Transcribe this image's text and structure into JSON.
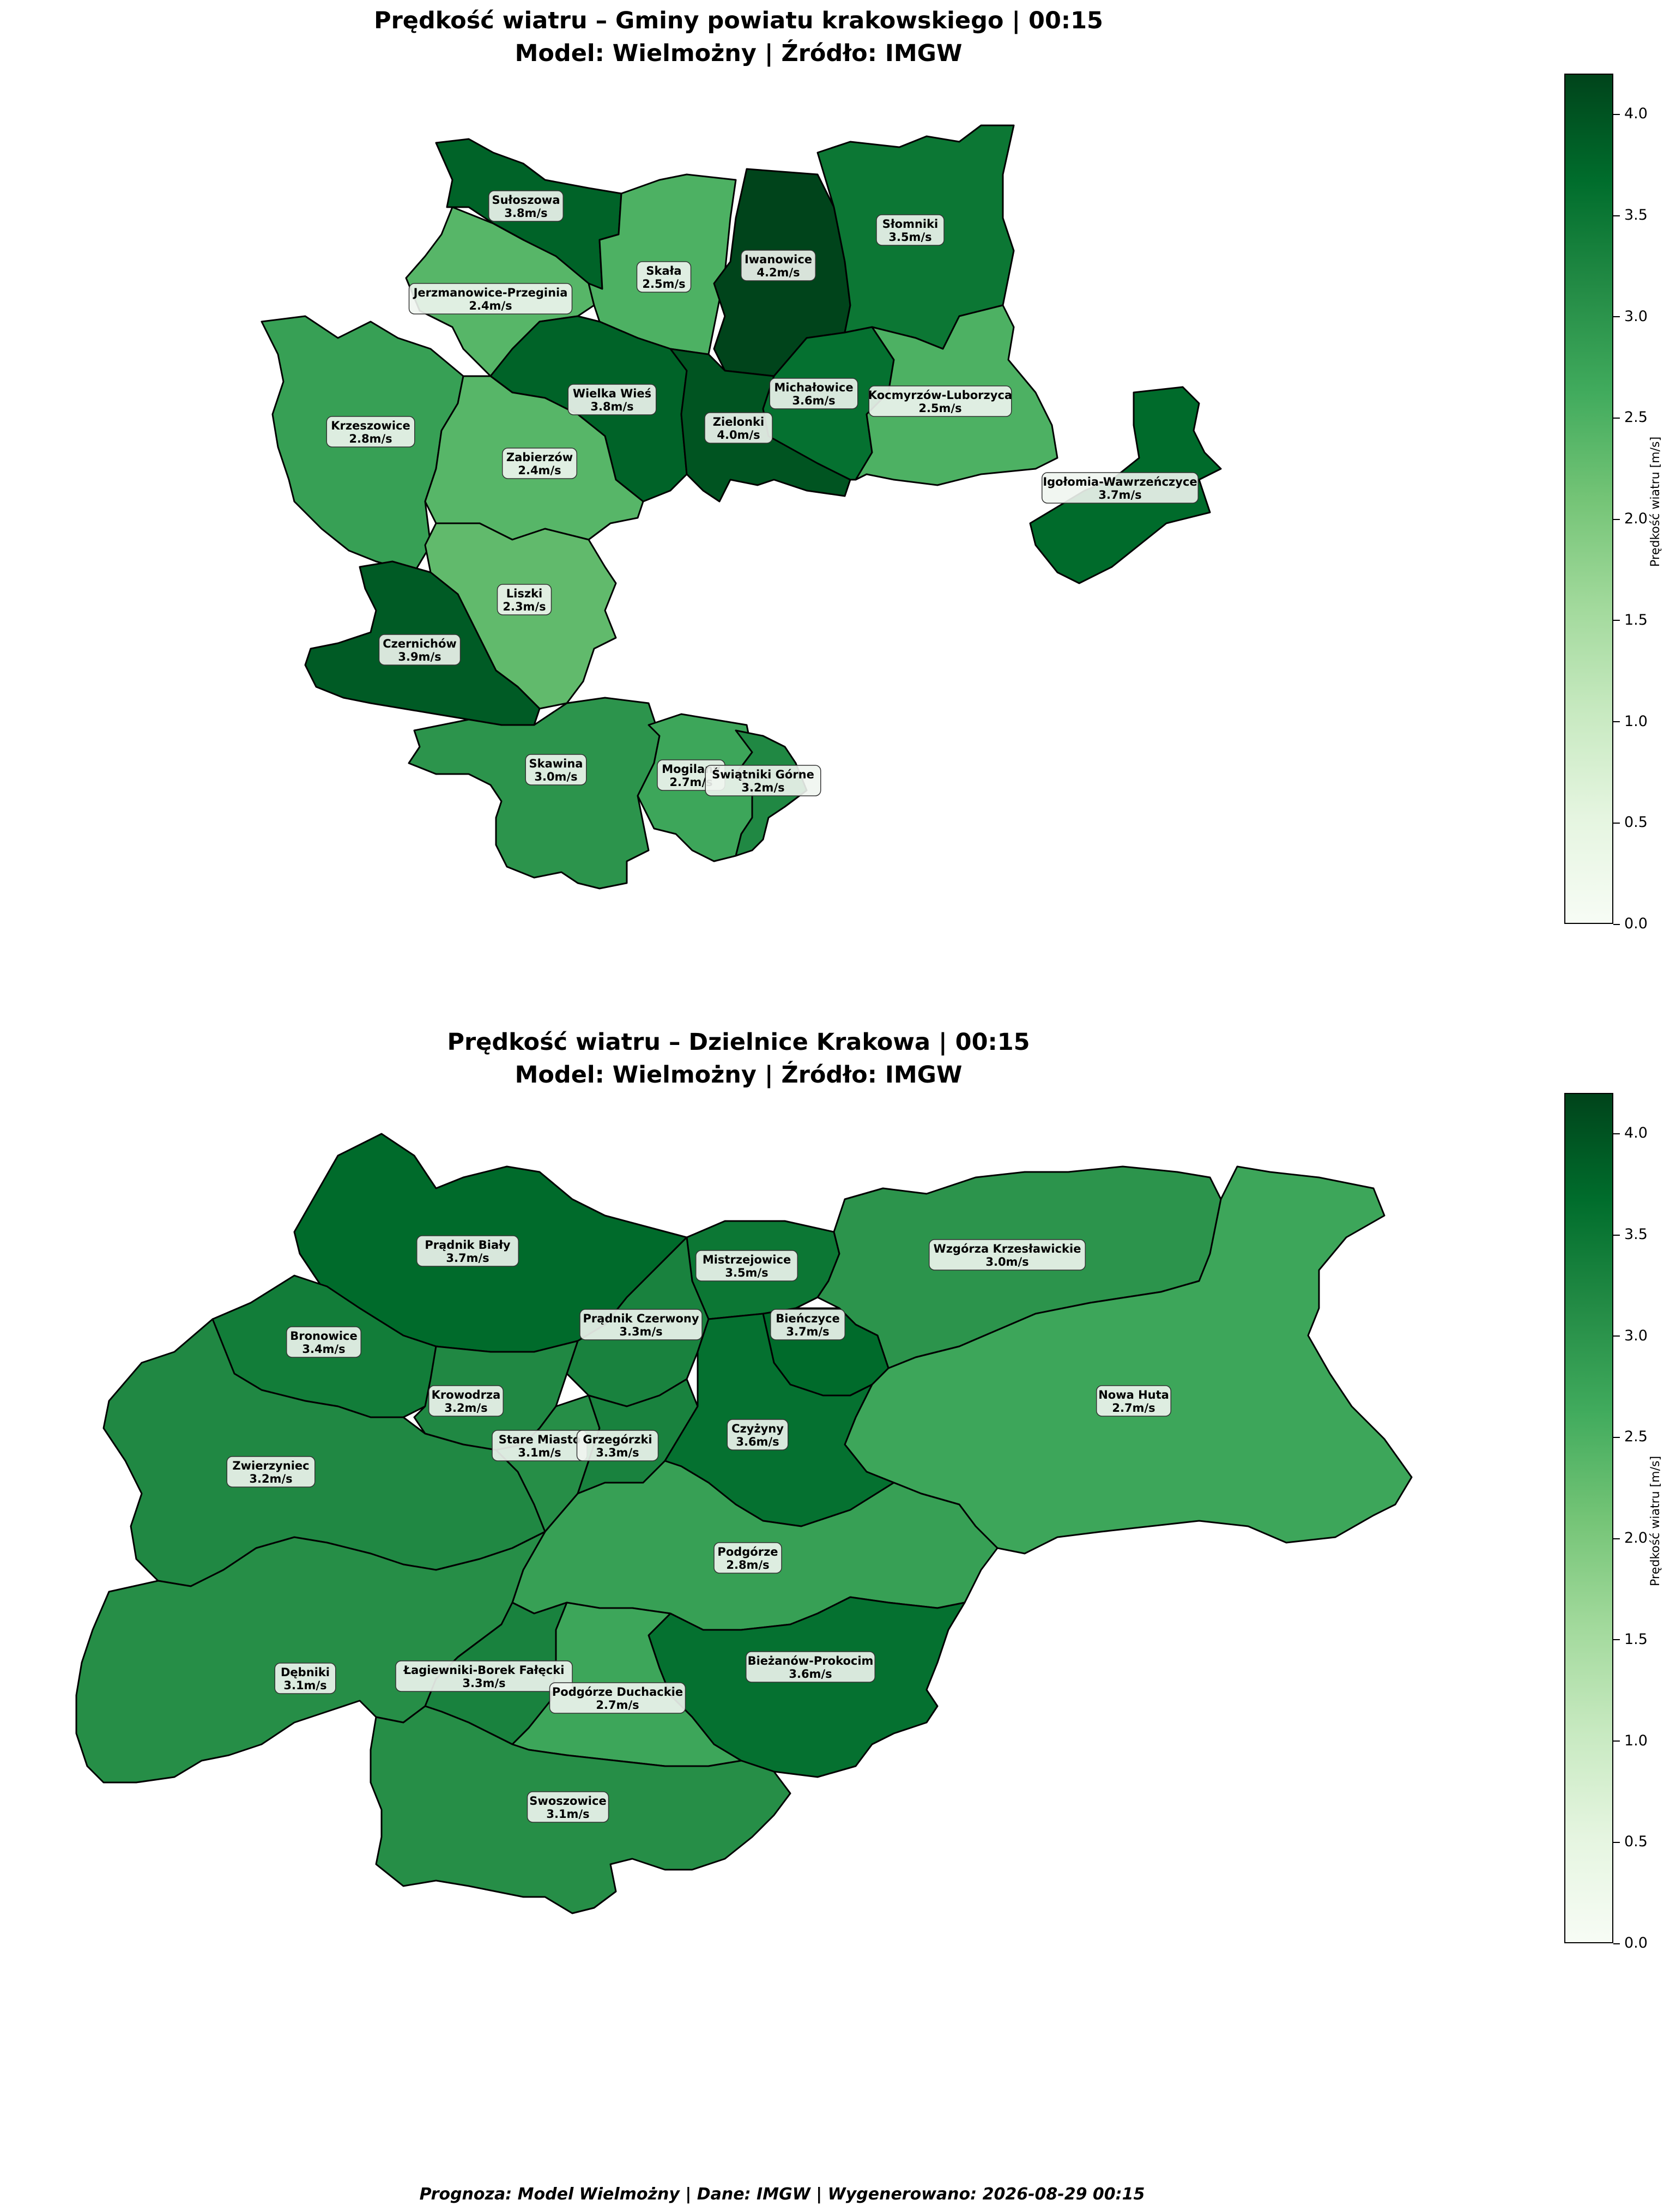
{
  "maps": [
    {
      "title_line1": "Prędkość wiatru – Gminy powiatu krakowskiego | 00:15",
      "title_line2": "Model: Wielmożny | Źródło: IMGW",
      "colorbar": {
        "label": "Prędkość wiatru [m/s]",
        "min": 0,
        "max": 4.2,
        "ticks": [
          "0.0",
          "0.5",
          "1.0",
          "1.5",
          "2.0",
          "2.5",
          "3.0",
          "3.5",
          "4.0"
        ]
      },
      "regions": [
        {
          "name": "Sułoszowa",
          "value": "3.8m/s",
          "v": 3.8
        },
        {
          "name": "Jerzmanowice-Przeginia",
          "value": "2.4m/s",
          "v": 2.4
        },
        {
          "name": "Skała",
          "value": "2.5m/s",
          "v": 2.5
        },
        {
          "name": "Iwanowice",
          "value": "4.2m/s",
          "v": 4.2
        },
        {
          "name": "Słomniki",
          "value": "3.5m/s",
          "v": 3.5
        },
        {
          "name": "Krzeszowice",
          "value": "2.8m/s",
          "v": 2.8
        },
        {
          "name": "Wielka Wieś",
          "value": "3.8m/s",
          "v": 3.8
        },
        {
          "name": "Zabierzów",
          "value": "2.4m/s",
          "v": 2.4
        },
        {
          "name": "Zielonki",
          "value": "4.0m/s",
          "v": 4.0
        },
        {
          "name": "Michałowice",
          "value": "3.6m/s",
          "v": 3.6
        },
        {
          "name": "Kocmyrzów-Luborzyca",
          "value": "2.5m/s",
          "v": 2.5
        },
        {
          "name": "Igołomia-Wawrzeńczyce",
          "value": "3.7m/s",
          "v": 3.7
        },
        {
          "name": "Liszki",
          "value": "2.3m/s",
          "v": 2.3
        },
        {
          "name": "Czernichów",
          "value": "3.9m/s",
          "v": 3.9
        },
        {
          "name": "Skawina",
          "value": "3.0m/s",
          "v": 3.0
        },
        {
          "name": "Mogilany",
          "value": "2.7m/s",
          "v": 2.7
        },
        {
          "name": "Świątniki Górne",
          "value": "3.2m/s",
          "v": 3.2
        }
      ]
    },
    {
      "title_line1": "Prędkość wiatru – Dzielnice Krakowa | 00:15",
      "title_line2": "Model: Wielmożny | Źródło: IMGW",
      "colorbar": {
        "label": "Prędkość wiatru [m/s]",
        "min": 0,
        "max": 4.2,
        "ticks": [
          "0.0",
          "0.5",
          "1.0",
          "1.5",
          "2.0",
          "2.5",
          "3.0",
          "3.5",
          "4.0"
        ]
      },
      "regions": [
        {
          "name": "Prądnik Biały",
          "value": "3.7m/s",
          "v": 3.7
        },
        {
          "name": "Mistrzejowice",
          "value": "3.5m/s",
          "v": 3.5
        },
        {
          "name": "Wzgórza Krzesławickie",
          "value": "3.0m/s",
          "v": 3.0
        },
        {
          "name": "Bronowice",
          "value": "3.4m/s",
          "v": 3.4
        },
        {
          "name": "Prądnik Czerwony",
          "value": "3.3m/s",
          "v": 3.3
        },
        {
          "name": "Bieńczyce",
          "value": "3.7m/s",
          "v": 3.7
        },
        {
          "name": "Krowodrza",
          "value": "3.2m/s",
          "v": 3.2
        },
        {
          "name": "Nowa Huta",
          "value": "2.7m/s",
          "v": 2.7
        },
        {
          "name": "Zwierzyniec",
          "value": "3.2m/s",
          "v": 3.2
        },
        {
          "name": "Stare Miasto",
          "value": "3.1m/s",
          "v": 3.1
        },
        {
          "name": "Grzegórzki",
          "value": "3.3m/s",
          "v": 3.3
        },
        {
          "name": "Czyżyny",
          "value": "3.6m/s",
          "v": 3.6
        },
        {
          "name": "Podgórze",
          "value": "2.8m/s",
          "v": 2.8
        },
        {
          "name": "Dębniki",
          "value": "3.1m/s",
          "v": 3.1
        },
        {
          "name": "Łagiewniki-Borek Fałęcki",
          "value": "3.3m/s",
          "v": 3.3
        },
        {
          "name": "Bieżanów-Prokocim",
          "value": "3.6m/s",
          "v": 3.6
        },
        {
          "name": "Podgórze Duchackie",
          "value": "2.7m/s",
          "v": 2.7
        },
        {
          "name": "Swoszowice",
          "value": "3.1m/s",
          "v": 3.1
        }
      ]
    }
  ],
  "footer": "Prognoza: Model Wielmożny | Dane: IMGW | Wygenerowano: 2026-08-29 00:15"
}
